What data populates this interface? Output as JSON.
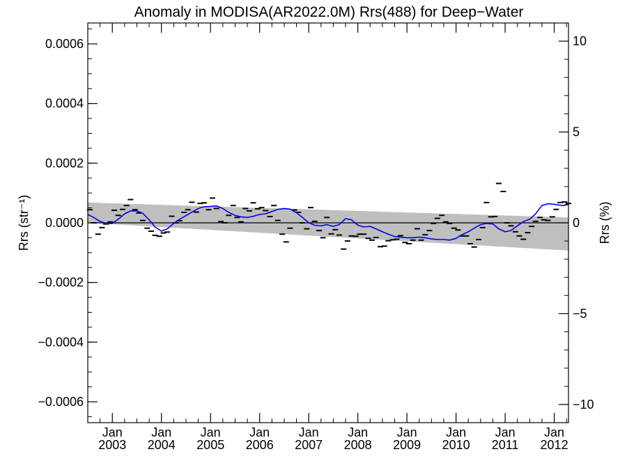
{
  "chart_data": {
    "type": "line",
    "title": "Anomaly in MODISA(AR2022.0M) Rrs(488) for Deep−Water",
    "ylabel": "Rrs (str⁻¹)",
    "y2label": "Rrs (%)",
    "xlabel": "",
    "x_range": [
      "2002-07-01",
      "2012-04-15"
    ],
    "ylim": [
      -0.00067,
      0.00067
    ],
    "y2lim": [
      -11.0,
      11.0
    ],
    "y_ticks": [
      "0.0006",
      "0.0004",
      "0.0002",
      "0.0000",
      "−0.0002",
      "−0.0004",
      "−0.0006"
    ],
    "y_tick_values": [
      0.0006,
      0.0004,
      0.0002,
      0.0,
      -0.0002,
      -0.0004,
      -0.0006
    ],
    "y2_ticks": [
      "10",
      "5",
      "0",
      "−5",
      "−10"
    ],
    "y2_tick_values": [
      10,
      5,
      0,
      -5,
      -10
    ],
    "x_ticks": [
      {
        "month": "Jan",
        "year": "2003"
      },
      {
        "month": "Jan",
        "year": "2004"
      },
      {
        "month": "Jan",
        "year": "2005"
      },
      {
        "month": "Jan",
        "year": "2006"
      },
      {
        "month": "Jan",
        "year": "2007"
      },
      {
        "month": "Jan",
        "year": "2008"
      },
      {
        "month": "Jan",
        "year": "2009"
      },
      {
        "month": "Jan",
        "year": "2010"
      },
      {
        "month": "Jan",
        "year": "2011"
      },
      {
        "month": "Jan",
        "year": "2012"
      }
    ],
    "x_tick_years": [
      2003,
      2004,
      2005,
      2006,
      2007,
      2008,
      2009,
      2010,
      2011,
      2012
    ],
    "zero_line": 0.0,
    "confidence_band": {
      "x": [
        2002.5,
        2012.29
      ],
      "upper": [
        6.8e-05,
        1.8e-05
      ],
      "lower": [
        0.0,
        -9.3e-05
      ]
    },
    "series": [
      {
        "style": "dash-markers",
        "color": "#000000",
        "x": [
          2002.54,
          2002.62,
          2002.71,
          2002.79,
          2002.87,
          2002.96,
          2003.04,
          2003.12,
          2003.21,
          2003.29,
          2003.37,
          2003.46,
          2003.54,
          2003.62,
          2003.71,
          2003.79,
          2003.87,
          2003.96,
          2004.04,
          2004.12,
          2004.21,
          2004.29,
          2004.37,
          2004.46,
          2004.54,
          2004.62,
          2004.71,
          2004.79,
          2004.87,
          2004.96,
          2005.04,
          2005.12,
          2005.21,
          2005.29,
          2005.37,
          2005.46,
          2005.54,
          2005.62,
          2005.71,
          2005.79,
          2005.87,
          2005.96,
          2006.04,
          2006.12,
          2006.21,
          2006.29,
          2006.37,
          2006.46,
          2006.54,
          2006.62,
          2006.71,
          2006.79,
          2006.87,
          2006.96,
          2007.04,
          2007.12,
          2007.21,
          2007.29,
          2007.37,
          2007.46,
          2007.54,
          2007.62,
          2007.71,
          2007.79,
          2007.87,
          2007.96,
          2008.04,
          2008.12,
          2008.21,
          2008.29,
          2008.37,
          2008.46,
          2008.54,
          2008.62,
          2008.71,
          2008.79,
          2008.87,
          2008.96,
          2009.04,
          2009.12,
          2009.21,
          2009.29,
          2009.37,
          2009.46,
          2009.54,
          2009.62,
          2009.71,
          2009.79,
          2009.87,
          2009.96,
          2010.04,
          2010.12,
          2010.21,
          2010.29,
          2010.37,
          2010.46,
          2010.54,
          2010.62,
          2010.71,
          2010.79,
          2010.87,
          2010.96,
          2011.04,
          2011.12,
          2011.21,
          2011.29,
          2011.37,
          2011.46,
          2011.54,
          2011.62,
          2011.71,
          2011.79,
          2011.87,
          2011.96,
          2012.04,
          2012.12,
          2012.21,
          2012.29
        ],
        "values": [
          4.4e-05,
          0.0,
          -3.8e-05,
          -1.6e-05,
          -4e-06,
          3e-06,
          4.2e-05,
          2.5e-05,
          4.5e-05,
          5.8e-05,
          7.8e-05,
          4.4e-05,
          3.3e-05,
          8e-06,
          -1.8e-05,
          -2.8e-05,
          -4.2e-05,
          -4.5e-05,
          -3.4e-05,
          -3.1e-05,
          2.2e-05,
          0.0,
          7e-06,
          3.5e-05,
          4.4e-05,
          6.9e-05,
          3.6e-05,
          6.5e-05,
          6.7e-05,
          4.4e-05,
          8.3e-05,
          4.8e-05,
          4e-06,
          0.0,
          2.5e-05,
          5.8e-05,
          1.8e-05,
          3e-06,
          4.8e-05,
          4e-05,
          6.7e-05,
          4.7e-05,
          5.1e-05,
          4.1e-05,
          2.1e-05,
          5.8e-05,
          8e-06,
          -3.8e-05,
          -6.4e-05,
          -1.8e-05,
          4.3e-05,
          3.5e-05,
          0.0,
          -2e-05,
          5.1e-05,
          5e-06,
          -2.6e-05,
          -5e-05,
          1.8e-05,
          -3.7e-05,
          -2.3e-05,
          -4.1e-05,
          -8.8e-05,
          -6.1e-05,
          -4.4e-05,
          -4.5e-05,
          -3.8e-05,
          -3.8e-05,
          -5.2e-05,
          -5.8e-05,
          -4.9e-05,
          -8e-05,
          -7.8e-05,
          -6e-05,
          -5.7e-05,
          -5.5e-05,
          -4.3e-05,
          -6.6e-05,
          -7e-05,
          -5.8e-05,
          -2e-05,
          -5.8e-05,
          -4e-05,
          -2.6e-05,
          -2e-06,
          1.5e-05,
          2.5e-05,
          3e-06,
          -2e-06,
          -1.8e-05,
          -2.4e-05,
          -4.4e-05,
          -4.4e-05,
          -7e-05,
          -8.1e-05,
          -5.6e-05,
          -1.6e-05,
          6.8e-05,
          2e-05,
          2.1e-05,
          0.000132,
          0.000105,
          0.0,
          -1e-05,
          -3e-05,
          -4.4e-05,
          -5.5e-05,
          -3.3e-05,
          -1.2e-05,
          5e-06,
          1.8e-05,
          1e-05,
          8e-06,
          2e-05,
          4.5e-05,
          6.8e-05,
          7e-05,
          6.5e-05
        ]
      },
      {
        "style": "smoothed-line",
        "color": "#0000ee",
        "x": [
          2002.5,
          2002.62,
          2002.75,
          2002.87,
          2003.0,
          2003.12,
          2003.25,
          2003.37,
          2003.5,
          2003.62,
          2003.75,
          2003.87,
          2004.0,
          2004.12,
          2004.25,
          2004.37,
          2004.5,
          2004.62,
          2004.75,
          2004.87,
          2005.0,
          2005.12,
          2005.25,
          2005.37,
          2005.5,
          2005.62,
          2005.75,
          2005.87,
          2006.0,
          2006.12,
          2006.25,
          2006.37,
          2006.5,
          2006.62,
          2006.75,
          2006.87,
          2007.0,
          2007.12,
          2007.25,
          2007.37,
          2007.5,
          2007.62,
          2007.75,
          2007.87,
          2008.0,
          2008.12,
          2008.25,
          2008.37,
          2008.5,
          2008.62,
          2008.75,
          2008.87,
          2009.0,
          2009.12,
          2009.25,
          2009.37,
          2009.5,
          2009.62,
          2009.75,
          2009.87,
          2010.0,
          2010.12,
          2010.25,
          2010.37,
          2010.5,
          2010.62,
          2010.75,
          2010.87,
          2011.0,
          2011.12,
          2011.25,
          2011.37,
          2011.5,
          2011.62,
          2011.75,
          2011.87,
          2012.0,
          2012.08,
          2012.17,
          2012.25,
          2012.29
        ],
        "values": [
          2.8e-05,
          1.8e-05,
          5e-06,
          -2e-06,
          -2e-06,
          1.2e-05,
          3e-05,
          4e-05,
          4e-05,
          3.2e-05,
          1e-05,
          -1.4e-05,
          -2.8e-05,
          -2e-05,
          -2e-06,
          1.2e-05,
          2.4e-05,
          3.6e-05,
          4.8e-05,
          5.4e-05,
          5.5e-05,
          5.7e-05,
          4.8e-05,
          3.5e-05,
          2.5e-05,
          2e-05,
          1.8e-05,
          2.2e-05,
          2.8e-05,
          3e-05,
          3.8e-05,
          4.5e-05,
          4.8e-05,
          4.6e-05,
          3.4e-05,
          1.8e-05,
          0.0,
          -8e-06,
          -1e-05,
          -6e-06,
          -1.2e-05,
          -6e-06,
          1.4e-05,
          1e-05,
          -8e-06,
          -1.4e-05,
          -1.2e-05,
          -2e-05,
          -3e-05,
          -3.8e-05,
          -4.6e-05,
          -4.8e-05,
          -5e-05,
          -5e-05,
          -4.8e-05,
          -5e-05,
          -5.4e-05,
          -5.6e-05,
          -5.6e-05,
          -5.8e-05,
          -5.2e-05,
          -4e-05,
          -3e-05,
          -1.8e-05,
          -6e-06,
          -2e-06,
          -4e-06,
          -2e-05,
          -3e-05,
          -2.6e-05,
          -1e-05,
          4e-06,
          1.2e-05,
          3e-05,
          5.8e-05,
          6.4e-05,
          6.2e-05,
          6e-05,
          5.8e-05,
          6e-05,
          6.2e-05
        ]
      }
    ]
  }
}
